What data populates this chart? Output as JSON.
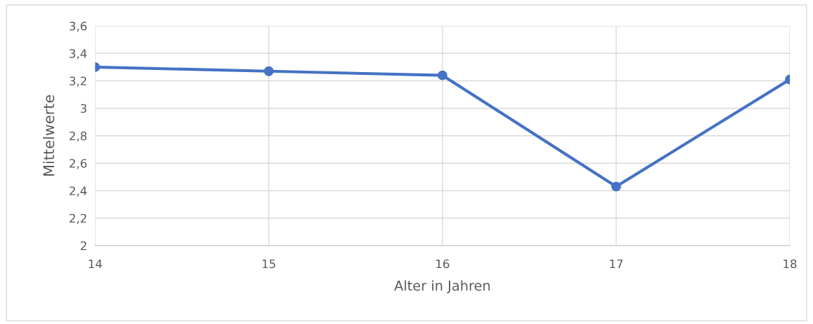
{
  "chart_data": {
    "type": "line",
    "xlabel": "Alter in Jahren",
    "ylabel": "Mittelwerte",
    "x": [
      14,
      15,
      16,
      17,
      18
    ],
    "series": [
      {
        "color": "#4472c4",
        "values": [
          3.3,
          3.27,
          3.24,
          2.43,
          3.21
        ]
      }
    ],
    "xlim": [
      14,
      18
    ],
    "xticks": [
      14,
      15,
      16,
      17,
      18
    ],
    "ylim": [
      2,
      3.6
    ],
    "yticks": [
      2,
      {
        "value": 2.2,
        "label": "2,2"
      },
      {
        "value": 2.4,
        "label": "2,4"
      },
      {
        "value": 2.6,
        "label": "2,6"
      },
      {
        "value": 2.8,
        "label": "2,8"
      },
      3,
      {
        "value": 3.2,
        "label": "3,2"
      },
      {
        "value": 3.4,
        "label": "3,4"
      },
      {
        "value": 3.6,
        "label": "3,6"
      }
    ],
    "grid": true,
    "marker": "circle",
    "line_style": "solid"
  }
}
